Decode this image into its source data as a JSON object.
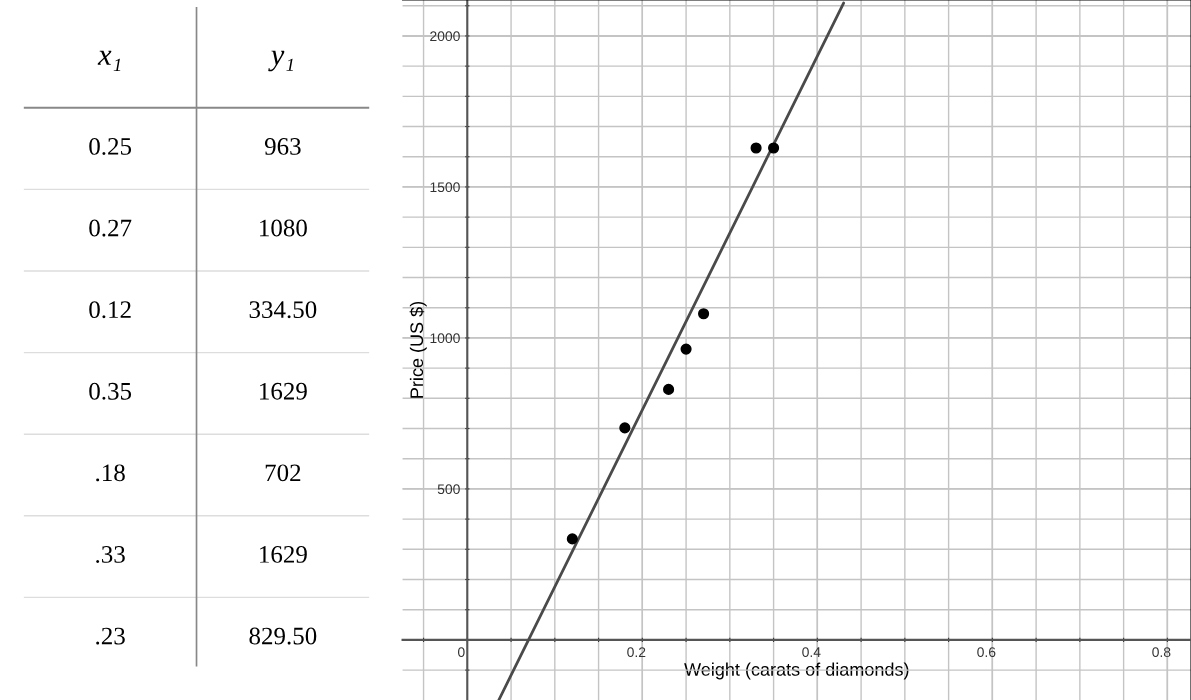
{
  "chart_data": [
    {
      "type": "other",
      "categories": [
        "x₁",
        "y₁"
      ],
      "cell_labels": [
        [
          "0.25",
          "963"
        ],
        [
          "0.27",
          "1080"
        ],
        [
          "0.12",
          "334.50"
        ],
        [
          "0.35",
          "1629"
        ],
        [
          ".18",
          "702"
        ],
        [
          ".33",
          "1629"
        ],
        [
          ".23",
          "829.50"
        ]
      ]
    },
    {
      "type": "scatter",
      "xlabel": "Weight (carats of diamonds)",
      "ylabel": "Price (US $)",
      "series": [
        {
          "type": "scatter",
          "color": "#000000",
          "marker": "circle",
          "x": [
            0.25,
            0.27,
            0.12,
            0.35,
            0.18,
            0.33,
            0.23
          ],
          "values": [
            963,
            1080,
            334.5,
            1629,
            702,
            1629,
            829.5
          ]
        },
        {
          "type": "line",
          "color": "#4a4a4a",
          "line_style": "solid",
          "x": [
            0.036,
            0.43
          ],
          "values": [
            -199,
            2109
          ]
        }
      ],
      "xlim": [
        -0.074,
        0.827
      ],
      "ylim": [
        -199,
        2119
      ],
      "xticks": [
        {
          "value": -0.05,
          "label": null
        },
        {
          "value": 0,
          "label": "0"
        },
        {
          "value": 0.05,
          "label": null
        },
        {
          "value": 0.1,
          "label": null
        },
        {
          "value": 0.15,
          "label": null
        },
        {
          "value": 0.2,
          "label": "0.2"
        },
        {
          "value": 0.25,
          "label": null
        },
        {
          "value": 0.3,
          "label": null
        },
        {
          "value": 0.35,
          "label": null
        },
        {
          "value": 0.4,
          "label": "0.4"
        },
        {
          "value": 0.45,
          "label": null
        },
        {
          "value": 0.5,
          "label": null
        },
        {
          "value": 0.55,
          "label": null
        },
        {
          "value": 0.6,
          "label": "0.6"
        },
        {
          "value": 0.65,
          "label": null
        },
        {
          "value": 0.7,
          "label": null
        },
        {
          "value": 0.75,
          "label": null
        },
        {
          "value": 0.8,
          "label": "0.8"
        }
      ],
      "yticks": [
        {
          "value": -100,
          "label": null
        },
        {
          "value": 0,
          "label": null
        },
        {
          "value": 100,
          "label": null
        },
        {
          "value": 200,
          "label": null
        },
        {
          "value": 300,
          "label": null
        },
        {
          "value": 400,
          "label": null
        },
        {
          "value": 500,
          "label": "500"
        },
        {
          "value": 600,
          "label": null
        },
        {
          "value": 700,
          "label": null
        },
        {
          "value": 800,
          "label": null
        },
        {
          "value": 900,
          "label": null
        },
        {
          "value": 1000,
          "label": "1000"
        },
        {
          "value": 1100,
          "label": null
        },
        {
          "value": 1200,
          "label": null
        },
        {
          "value": 1300,
          "label": null
        },
        {
          "value": 1400,
          "label": null
        },
        {
          "value": 1500,
          "label": "1500"
        },
        {
          "value": 1600,
          "label": null
        },
        {
          "value": 1700,
          "label": null
        },
        {
          "value": 1800,
          "label": null
        },
        {
          "value": 1900,
          "label": null
        },
        {
          "value": 2000,
          "label": "2000"
        },
        {
          "value": 2100,
          "label": null
        }
      ],
      "grid": true,
      "legend": false
    }
  ]
}
